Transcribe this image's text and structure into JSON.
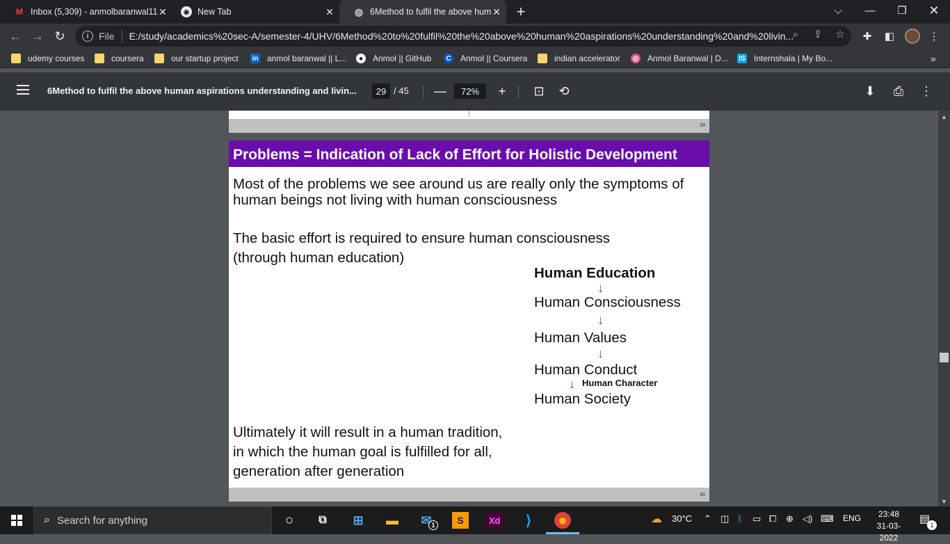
{
  "tabs": [
    {
      "title": "Inbox (5,309) - anmolbaranwal11",
      "icon": "gmail-icon"
    },
    {
      "title": "New Tab",
      "icon": "chrome-icon"
    },
    {
      "title": "6Method to fulfil the above hum",
      "icon": "globe-icon"
    }
  ],
  "omnibox": {
    "scheme": "File",
    "url": "E:/study/academics%20sec-A/semester-4/UHV/6Method%20to%20fulfil%20the%20above%20human%20aspirations%20understanding%20and%20livin..."
  },
  "bookmarks": [
    {
      "label": "udemy courses",
      "icon": "folder-icon"
    },
    {
      "label": "coursera",
      "icon": "folder-icon"
    },
    {
      "label": "our startup project",
      "icon": "folder-icon"
    },
    {
      "label": "anmol baranwal || L...",
      "icon": "linkedin-icon"
    },
    {
      "label": "Anmol || GitHub",
      "icon": "github-icon"
    },
    {
      "label": "Anmol || Coursera",
      "icon": "coursera-icon"
    },
    {
      "label": "indian accelerator",
      "icon": "folder-icon"
    },
    {
      "label": "Anmol Baranwal | D...",
      "icon": "dribbble-icon"
    },
    {
      "label": "Internshala | My Bo...",
      "icon": "internshala-icon"
    }
  ],
  "bookmarks_overflow": "»",
  "pdf": {
    "title": "6Method to fulfil the above human aspirations understanding and livin...",
    "page": "29",
    "total": "/ 45",
    "zoom": "72%"
  },
  "prev_page_number": "39",
  "slide": {
    "heading": "Problems = Indication of Lack of Effort for Holistic Development",
    "para1_line1": "Most of the problems we see around us are really only the symptoms of",
    "para1_line2": "human beings not living with human consciousness",
    "para2_line1": "The basic effort is required to ensure human consciousness",
    "para2_line2": "(through human education)",
    "flow": {
      "education": "Human Education",
      "consciousness": "Human Consciousness",
      "values": "Human Values",
      "conduct": "Human Conduct",
      "character": "Human Character",
      "society": "Human Society"
    },
    "para3_line1": "Ultimately it will result in a human tradition,",
    "para3_line2": "in which the human goal is fulfilled for all,",
    "para3_line3": "generation after generation",
    "page_number": "40"
  },
  "taskbar": {
    "search_placeholder": "Search for anything",
    "weather": "30°C",
    "language": "ENG",
    "time": "23:48",
    "date": "31-03-2022",
    "notification_count": "1",
    "mail_badge": "1"
  }
}
